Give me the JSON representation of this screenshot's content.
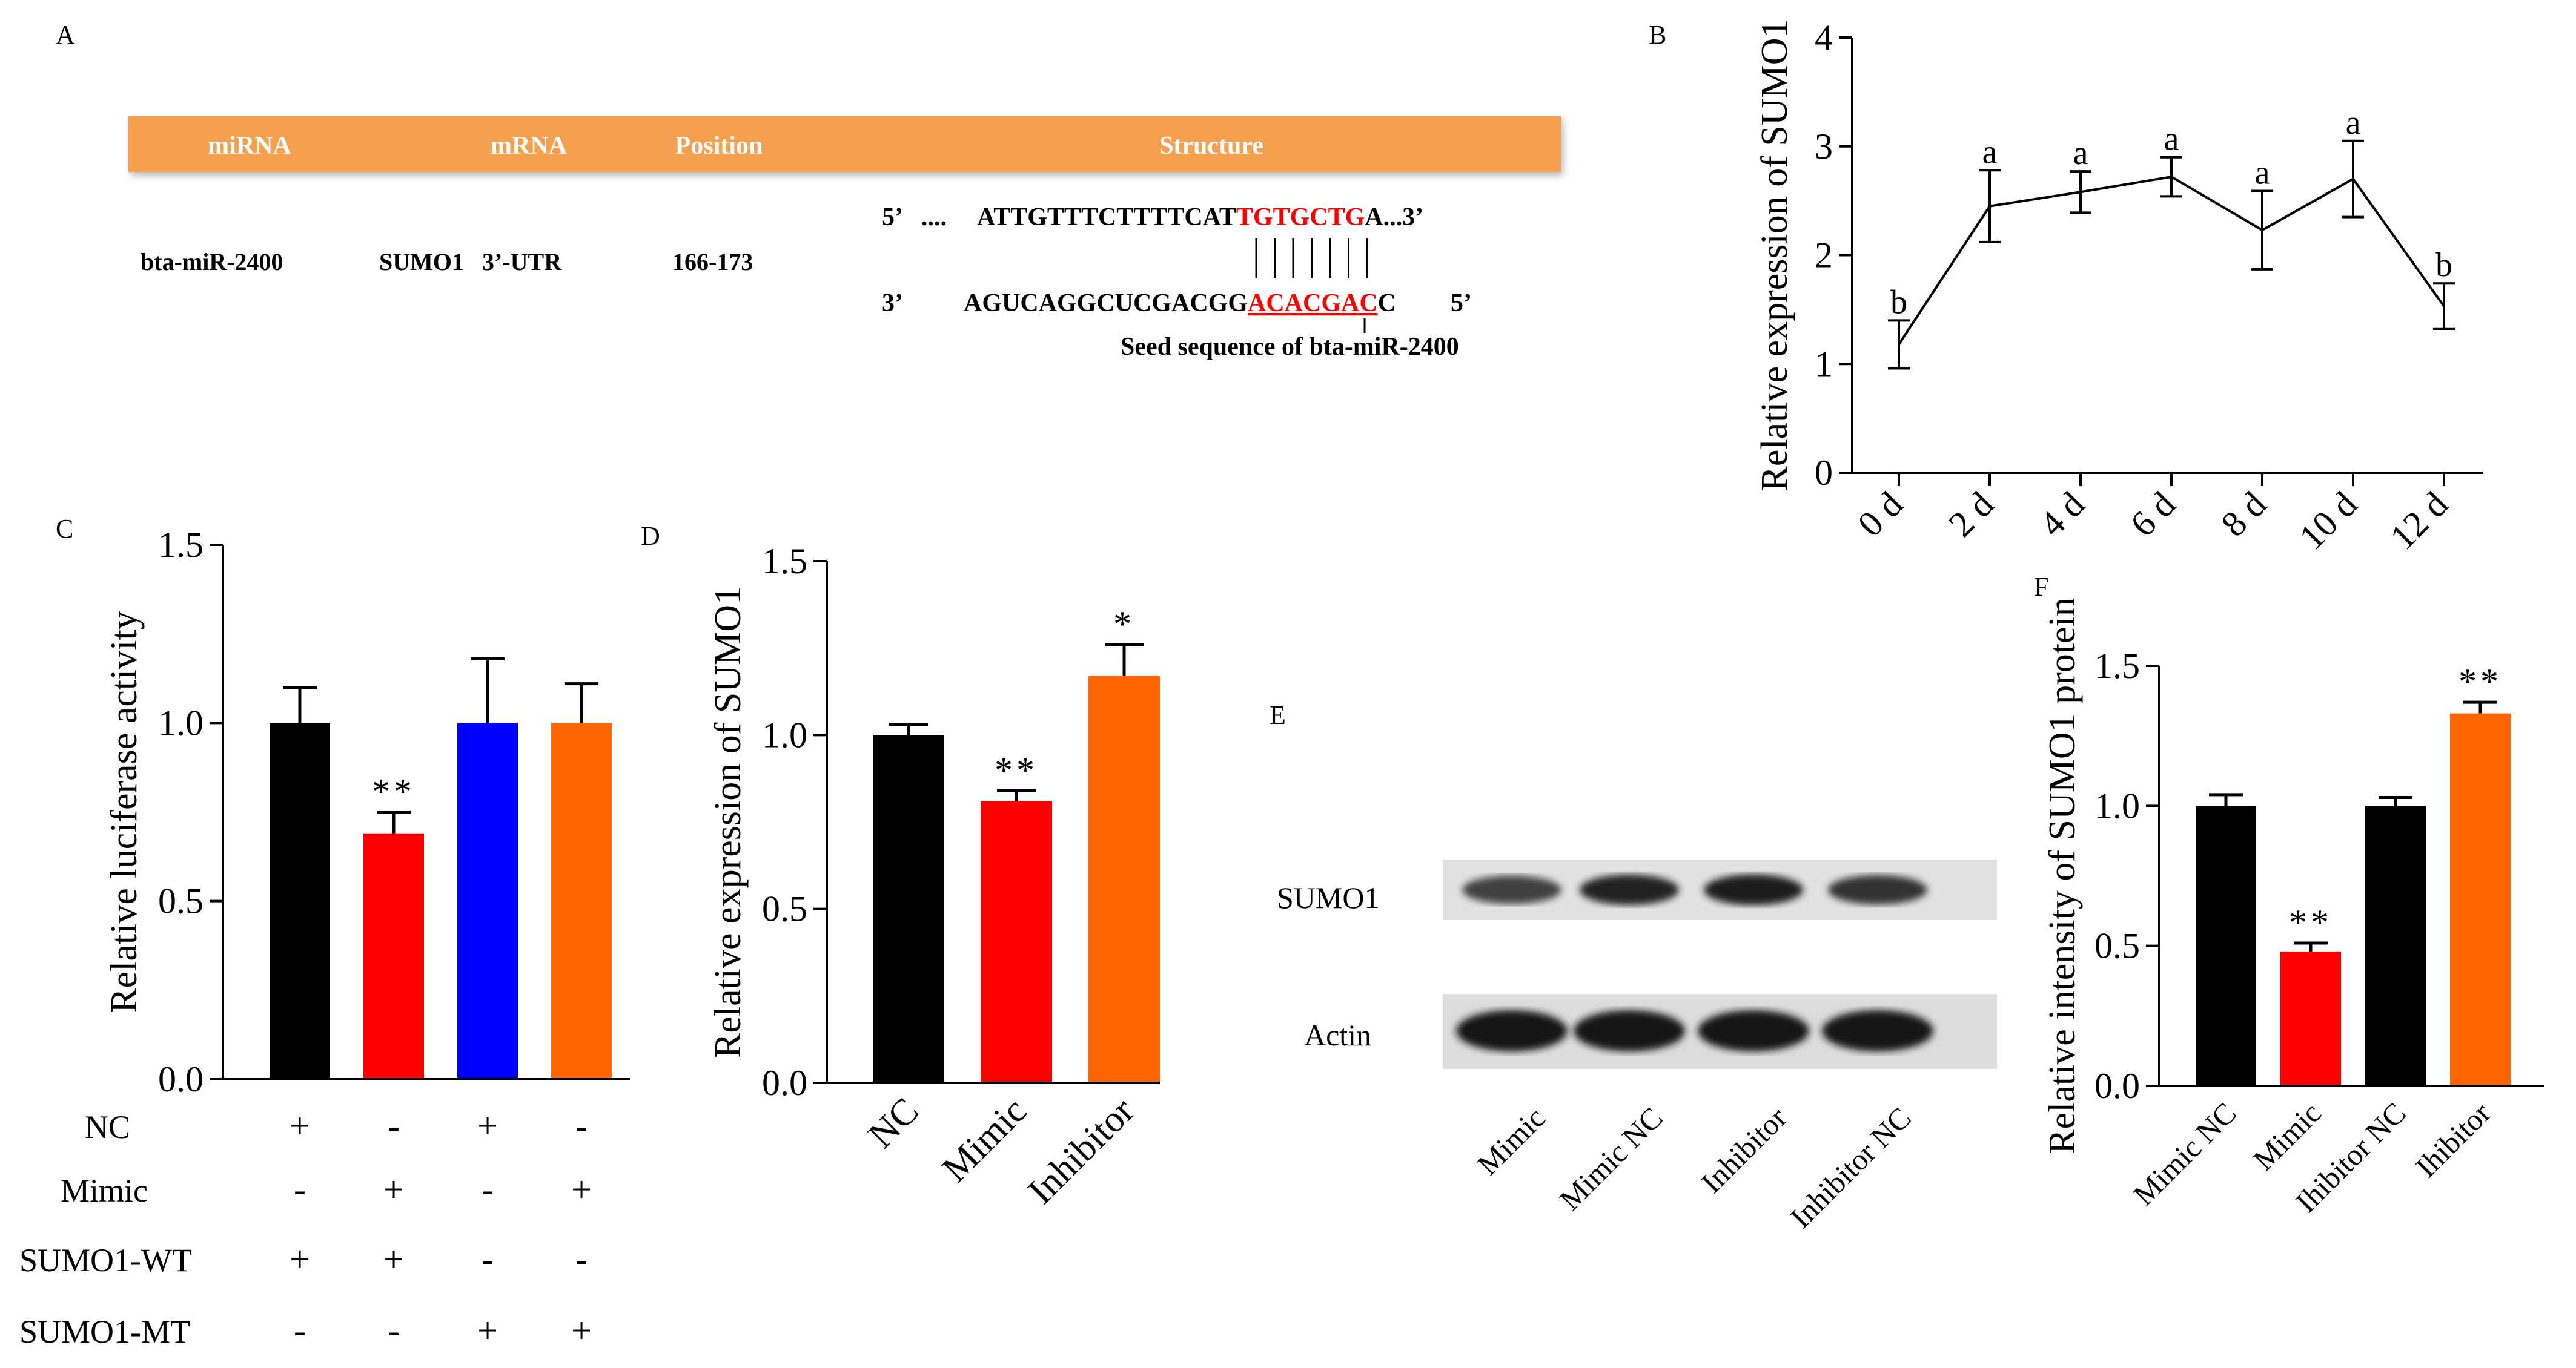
{
  "panels": {
    "A": {
      "letter": "A",
      "table_headers": [
        "miRNA",
        "mRNA",
        "Position",
        "Structure"
      ],
      "row": {
        "mirna": "bta-miR-2400",
        "mrna": "SUMO1   3’-UTR",
        "position": "166-173"
      },
      "mrna_seq": {
        "prime5": "5’",
        "dots": "....",
        "plain": "ATTGTTTCTTTTCAT",
        "highlight": "TGTGCTG",
        "tail": "A...3’"
      },
      "mirna_seq": {
        "prime3": "3’",
        "plain": "AGUCAGGCUCGACGG",
        "highlight": "ACACGAC",
        "tail": "C",
        "prime5": "5’"
      },
      "seed_label": "Seed sequence of bta-miR-2400",
      "header_color": "#f4a04f",
      "highlight_color": "#ff0000"
    },
    "B": {
      "letter": "B"
    },
    "C": {
      "letter": "C"
    },
    "D": {
      "letter": "D"
    },
    "E": {
      "letter": "E",
      "rows": [
        "SUMO1",
        "Actin"
      ],
      "lanes": [
        "Mimic",
        "Mimic NC",
        "Inhibitor",
        "Inhibitor NC"
      ],
      "sumo1_band_intensity": [
        0.55,
        0.85,
        0.9,
        0.7
      ],
      "actin_band_intensity": [
        0.95,
        0.95,
        0.95,
        0.95
      ]
    },
    "F": {
      "letter": "F"
    }
  },
  "chart_data": [
    {
      "panel": "B",
      "type": "line",
      "categories": [
        "0 d",
        "2 d",
        "4 d",
        "6 d",
        "8 d",
        "10 d",
        "12 d"
      ],
      "values": [
        1.18,
        2.45,
        2.58,
        2.72,
        2.23,
        2.7,
        1.53
      ],
      "errors": [
        0.22,
        0.33,
        0.19,
        0.18,
        0.36,
        0.35,
        0.21
      ],
      "significance": [
        "b",
        "a",
        "a",
        "a",
        "a",
        "a",
        "b"
      ],
      "ylabel": "Relative expression of SUMO1",
      "ylim": [
        0,
        4
      ],
      "yticks": [
        "0",
        "1",
        "2",
        "3",
        "4"
      ],
      "grid": false
    },
    {
      "panel": "C",
      "type": "bar",
      "values": [
        1.0,
        0.69,
        1.0,
        1.0
      ],
      "errors": [
        0.1,
        0.06,
        0.18,
        0.11
      ],
      "colors": [
        "#000000",
        "#ff0000",
        "#0000ff",
        "#ff6600"
      ],
      "significance": [
        "",
        "**",
        "",
        ""
      ],
      "ylabel": "Relative luciferase activity",
      "ylim": [
        0,
        1.5
      ],
      "yticks": [
        "0.0",
        "0.5",
        "1.0",
        "1.5"
      ],
      "factors": [
        {
          "name": "NC",
          "signs": [
            "+",
            "-",
            "+",
            "-"
          ]
        },
        {
          "name": "Mimic",
          "signs": [
            "-",
            "+",
            "-",
            "+"
          ]
        },
        {
          "name": "SUMO1-WT",
          "signs": [
            "+",
            "+",
            "-",
            "-"
          ]
        },
        {
          "name": "SUMO1-MT",
          "signs": [
            "-",
            "-",
            "+",
            "+"
          ]
        }
      ],
      "grid": false
    },
    {
      "panel": "D",
      "type": "bar",
      "categories": [
        "NC",
        "Mimic",
        "Inhibitor"
      ],
      "values": [
        1.0,
        0.81,
        1.17
      ],
      "errors": [
        0.03,
        0.03,
        0.09
      ],
      "colors": [
        "#000000",
        "#ff0000",
        "#ff6600"
      ],
      "significance": [
        "",
        "**",
        "*"
      ],
      "ylabel": "Relative expression of SUMO1",
      "ylim": [
        0,
        1.5
      ],
      "yticks": [
        "0.0",
        "0.5",
        "1.0",
        "1.5"
      ],
      "grid": false
    },
    {
      "panel": "F",
      "type": "bar",
      "categories": [
        "Mimic NC",
        "Mimic",
        "Ihibitor NC",
        "Ihibitor"
      ],
      "values": [
        1.0,
        0.48,
        1.0,
        1.33
      ],
      "errors": [
        0.04,
        0.03,
        0.03,
        0.04
      ],
      "colors": [
        "#000000",
        "#ff0000",
        "#000000",
        "#ff6600"
      ],
      "significance": [
        "",
        "**",
        "",
        "**"
      ],
      "ylabel": "Relative intensity of  SUMO1 protein",
      "ylim": [
        0,
        1.5
      ],
      "yticks": [
        "0.0",
        "0.5",
        "1.0",
        "1.5"
      ],
      "grid": false
    }
  ]
}
